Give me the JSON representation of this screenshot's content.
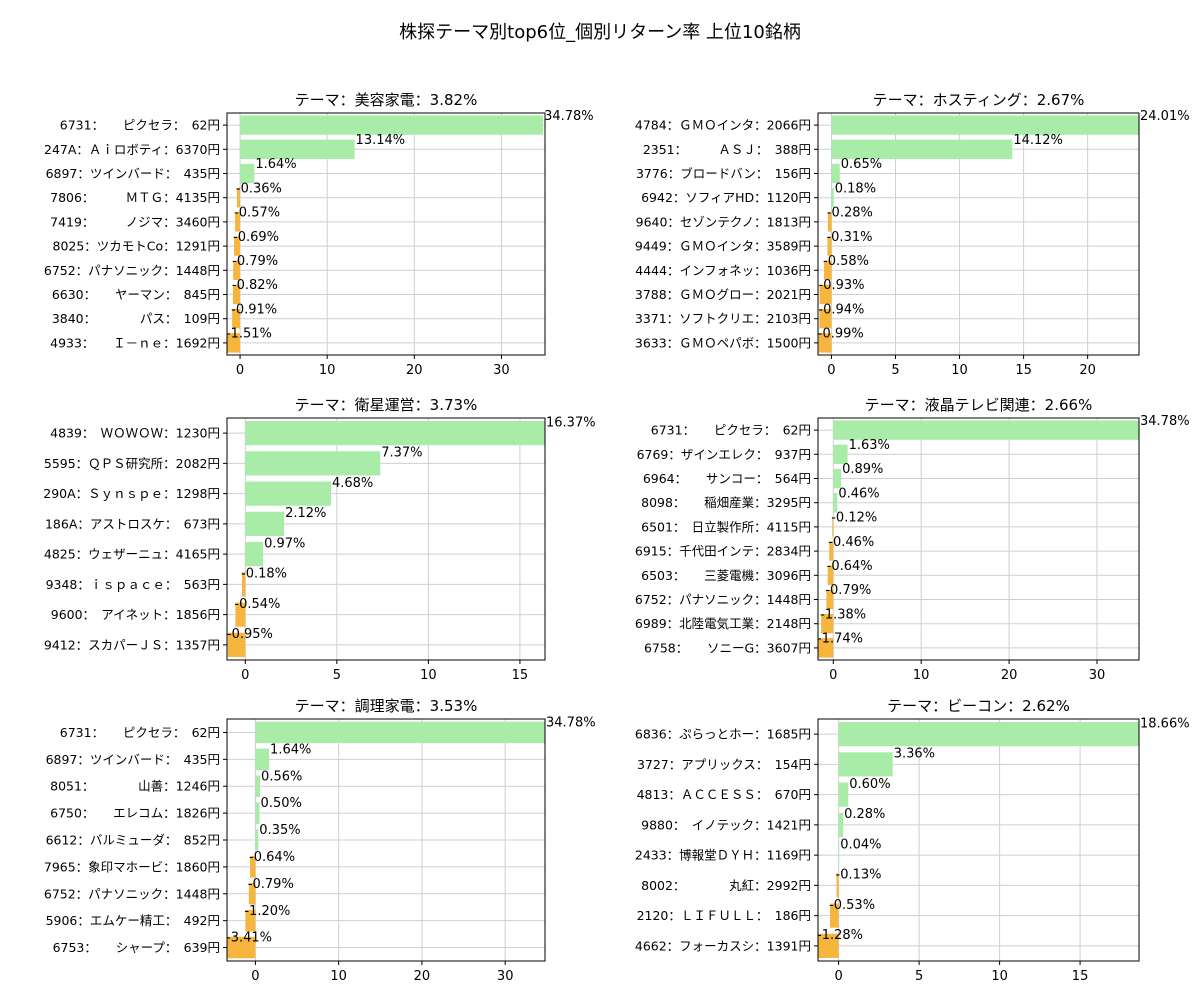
{
  "figure": {
    "suptitle": "株探テーマ別top6位_個別リターン率 上位10銘柄",
    "positive_color": "#a8eca8",
    "negative_color": "#f6b53c"
  },
  "chart_data": [
    {
      "type": "bar",
      "orientation": "horizontal",
      "title": "テーマ：美容家電：3.82%",
      "categories": [
        "6731：　　ピクセラ：　62円",
        "247A：Ａｉロボティ：6370円",
        "6897：ツインバード：　435円",
        "7806：　　　ＭＴＧ：4135円",
        "7419：　　　ノジマ：3460円",
        "8025：ツカモトCo：1291円",
        "6752：パナソニック：1448円",
        "6630：　　ヤーマン：　845円",
        "3840：　　　　パス：　109円",
        "4933：　　Ｉ－ｎｅ：1692円"
      ],
      "values": [
        34.78,
        13.14,
        1.64,
        -0.36,
        -0.57,
        -0.69,
        -0.79,
        -0.82,
        -0.91,
        -1.51
      ],
      "value_labels": [
        "34.78%",
        "13.14%",
        "1.64%",
        "-0.36%",
        "-0.57%",
        "-0.69%",
        "-0.79%",
        "-0.82%",
        "-0.91%",
        "-1.51%"
      ],
      "xlim": [
        -1.5,
        35
      ],
      "xticks": [
        0,
        10,
        20,
        30
      ],
      "xtick_labels": [
        "0",
        "10",
        "20",
        "30"
      ],
      "grid": true
    },
    {
      "type": "bar",
      "orientation": "horizontal",
      "title": "テーマ：ホスティング：2.67%",
      "categories": [
        "4784：ＧＭＯインタ：2066円",
        "2351：　　　ＡＳＪ：　388円",
        "3776：ブロードバン：　156円",
        "6942：ソフィアHD：1120円",
        "9640：セゾンテクノ：1813円",
        "9449：ＧＭＯインタ：3589円",
        "4444：インフォネッ：1036円",
        "3788：ＧＭＯグロー：2021円",
        "3371：ソフトクリエ：2103円",
        "3633：ＧＭＯペパボ：1500円"
      ],
      "values": [
        24.01,
        14.12,
        0.65,
        0.18,
        -0.28,
        -0.31,
        -0.58,
        -0.93,
        -0.94,
        -0.99
      ],
      "value_labels": [
        "24.01%",
        "14.12%",
        "0.65%",
        "0.18%",
        "-0.28%",
        "-0.31%",
        "-0.58%",
        "-0.93%",
        "-0.94%",
        "-0.99%"
      ],
      "xlim": [
        -1.05,
        24.01
      ],
      "xticks": [
        0,
        5,
        10,
        15,
        20
      ],
      "xtick_labels": [
        "0",
        "5",
        "10",
        "15",
        "20"
      ],
      "grid": true
    },
    {
      "type": "bar",
      "orientation": "horizontal",
      "title": "テーマ：衛星運営：3.73%",
      "categories": [
        "4839：　ＷＯＷＯＷ：1230円",
        "5595：ＱＰＳ研究所：2082円",
        "290A：Ｓｙｎｓｐｅ：1298円",
        "186A：アストロスケ：　673円",
        "4825：ウェザーニュ：4165円",
        "9348：ｉｓｐａｃｅ：　563円",
        "9600：　アイネット：1856円",
        "9412：スカパーＪＳ：1357円"
      ],
      "values": [
        16.37,
        7.37,
        4.68,
        2.12,
        0.97,
        -0.18,
        -0.54,
        -0.95
      ],
      "value_labels": [
        "16.37%",
        "7.37%",
        "4.68%",
        "2.12%",
        "0.97%",
        "-0.18%",
        "-0.54%",
        "-0.95%"
      ],
      "xlim": [
        -1.0,
        16.37
      ],
      "xticks": [
        0,
        5,
        10,
        15
      ],
      "xtick_labels": [
        "0",
        "5",
        "10",
        "15"
      ],
      "grid": true
    },
    {
      "type": "bar",
      "orientation": "horizontal",
      "title": "テーマ：液晶テレビ関連：2.66%",
      "categories": [
        "6731：　　ピクセラ：　62円",
        "6769：ザインエレク：　937円",
        "6964：　　サンコー：　564円",
        "8098：　　稲畑産業：3295円",
        "6501：　日立製作所：4115円",
        "6915：千代田インテ：2834円",
        "6503：　　三菱電機：3096円",
        "6752：パナソニック：1448円",
        "6989：北陸電気工業：2148円",
        "6758：　　ソニーG：3607円"
      ],
      "values": [
        34.78,
        1.63,
        0.89,
        0.46,
        -0.12,
        -0.46,
        -0.64,
        -0.79,
        -1.38,
        -1.74
      ],
      "value_labels": [
        "34.78%",
        "1.63%",
        "0.89%",
        "0.46%",
        "-0.12%",
        "-0.46%",
        "-0.64%",
        "-0.79%",
        "-1.38%",
        "-1.74%"
      ],
      "xlim": [
        -1.74,
        34.78
      ],
      "xticks": [
        0,
        10,
        20,
        30
      ],
      "xtick_labels": [
        "0",
        "10",
        "20",
        "30"
      ],
      "grid": true
    },
    {
      "type": "bar",
      "orientation": "horizontal",
      "title": "テーマ：調理家電：3.53%",
      "categories": [
        "6731：　　ピクセラ：　62円",
        "6897：ツインバード：　435円",
        "8051：　　　　山善：1246円",
        "6750：　　エレコム：1826円",
        "6612：バルミューダ：　852円",
        "7965：象印マホービ：1860円",
        "6752：パナソニック：1448円",
        "5906：エムケー精工：　492円",
        "6753：　　シャープ：　639円"
      ],
      "values": [
        34.78,
        1.64,
        0.56,
        0.5,
        0.35,
        -0.64,
        -0.79,
        -1.2,
        -3.41
      ],
      "value_labels": [
        "34.78%",
        "1.64%",
        "0.56%",
        "0.50%",
        "0.35%",
        "-0.64%",
        "-0.79%",
        "-1.20%",
        "-3.41%"
      ],
      "xlim": [
        -3.41,
        34.78
      ],
      "xticks": [
        0,
        10,
        20,
        30
      ],
      "xtick_labels": [
        "0",
        "10",
        "20",
        "30"
      ],
      "grid": true
    },
    {
      "type": "bar",
      "orientation": "horizontal",
      "title": "テーマ：ビーコン：2.62%",
      "categories": [
        "6836：ぷらっとホー：1685円",
        "3727：アプリックス：　154円",
        "4813：ＡＣＣＥＳＳ：　670円",
        "9880：　イノテック：1421円",
        "2433：博報堂ＤＹＨ：1169円",
        "8002：　　　　丸紅：2992円",
        "2120：ＬＩＦＵＬＬ：　186円",
        "4662：フォーカスシ：1391円"
      ],
      "values": [
        18.66,
        3.36,
        0.6,
        0.28,
        0.04,
        -0.13,
        -0.53,
        -1.28
      ],
      "value_labels": [
        "18.66%",
        "3.36%",
        "0.60%",
        "0.28%",
        "0.04%",
        "-0.13%",
        "-0.53%",
        "-1.28%"
      ],
      "xlim": [
        -1.28,
        18.66
      ],
      "xticks": [
        0,
        5,
        10,
        15
      ],
      "xtick_labels": [
        "0",
        "5",
        "10",
        "15"
      ],
      "grid": true
    }
  ]
}
